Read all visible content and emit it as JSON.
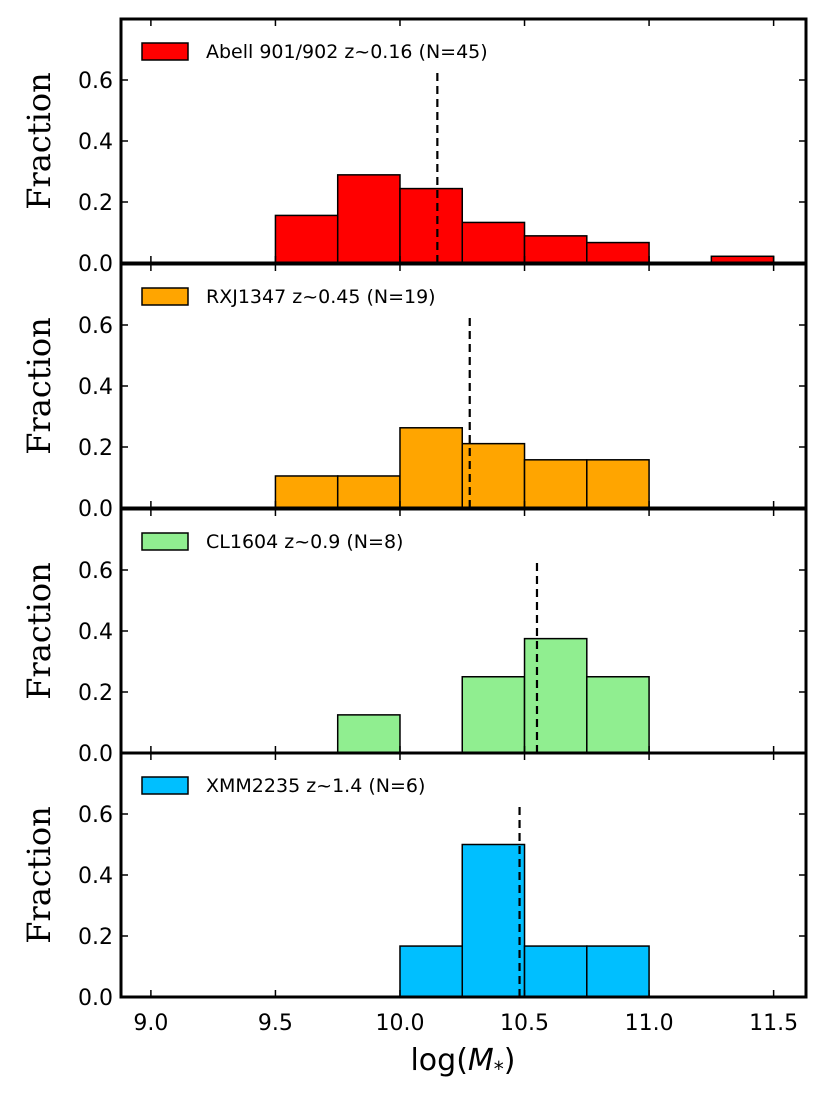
{
  "chart_data": {
    "type": "histogram",
    "xlabel_prefix": "log(",
    "xlabel_var": "M",
    "xlabel_sub": "*",
    "xlabel_suffix": ")",
    "ylabel": "Fraction",
    "xlim": [
      8.88,
      11.63
    ],
    "ylim": [
      0.0,
      0.8
    ],
    "x_ticks": [
      9.0,
      9.5,
      10.0,
      10.5,
      11.0,
      11.5
    ],
    "x_tick_labels": [
      "9.0",
      "9.5",
      "10.0",
      "10.5",
      "11.0",
      "11.5"
    ],
    "y_ticks": [
      0.0,
      0.2,
      0.4,
      0.6
    ],
    "y_tick_labels": [
      "0.0",
      "0.2",
      "0.4",
      "0.6"
    ],
    "bin_width": 0.25,
    "panels": [
      {
        "legend": "Abell 901/902 z~0.16 (N=45)",
        "color": "#ff0000",
        "median": 10.15,
        "bins": [
          {
            "left": 9.5,
            "value": 0.156
          },
          {
            "left": 9.75,
            "value": 0.289
          },
          {
            "left": 10.0,
            "value": 0.244
          },
          {
            "left": 10.25,
            "value": 0.133
          },
          {
            "left": 10.5,
            "value": 0.089
          },
          {
            "left": 10.75,
            "value": 0.067
          },
          {
            "left": 11.0,
            "value": 0.0
          },
          {
            "left": 11.25,
            "value": 0.022
          }
        ]
      },
      {
        "legend": "RXJ1347 z~0.45 (N=19)",
        "color": "#ffa500",
        "median": 10.28,
        "bins": [
          {
            "left": 9.5,
            "value": 0.105
          },
          {
            "left": 9.75,
            "value": 0.105
          },
          {
            "left": 10.0,
            "value": 0.263
          },
          {
            "left": 10.25,
            "value": 0.211
          },
          {
            "left": 10.5,
            "value": 0.158
          },
          {
            "left": 10.75,
            "value": 0.158
          }
        ]
      },
      {
        "legend": "CL1604 z~0.9 (N=8)",
        "color": "#90ee90",
        "median": 10.55,
        "bins": [
          {
            "left": 9.75,
            "value": 0.125
          },
          {
            "left": 10.0,
            "value": 0.0
          },
          {
            "left": 10.25,
            "value": 0.25
          },
          {
            "left": 10.5,
            "value": 0.375
          },
          {
            "left": 10.75,
            "value": 0.25
          }
        ]
      },
      {
        "legend": "XMM2235 z~1.4 (N=6)",
        "color": "#00bfff",
        "median": 10.48,
        "bins": [
          {
            "left": 10.0,
            "value": 0.167
          },
          {
            "left": 10.25,
            "value": 0.5
          },
          {
            "left": 10.5,
            "value": 0.167
          },
          {
            "left": 10.75,
            "value": 0.167
          }
        ]
      }
    ]
  }
}
